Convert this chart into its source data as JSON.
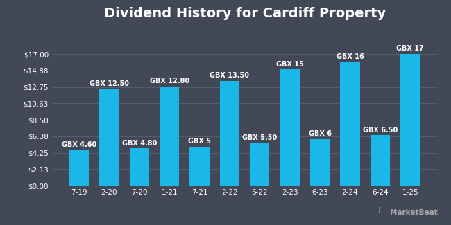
{
  "title": "Dividend History for Cardiff Property",
  "categories": [
    "7-19",
    "2-20",
    "7-20",
    "1-21",
    "7-21",
    "2-22",
    "6-22",
    "2-23",
    "6-23",
    "2-24",
    "6-24",
    "1-25"
  ],
  "values": [
    4.6,
    12.5,
    4.8,
    12.8,
    5.0,
    13.5,
    5.5,
    15.0,
    6.0,
    16.0,
    6.5,
    17.0
  ],
  "labels": [
    "GBX 4.60",
    "GBX 12.50",
    "GBX 4.80",
    "GBX 12.80",
    "GBX 5",
    "GBX 13.50",
    "GBX 5.50",
    "GBX 15",
    "GBX 6",
    "GBX 16",
    "GBX 6.50",
    "GBX 17"
  ],
  "bar_color": "#1ab8e8",
  "background_color": "#434857",
  "plot_bg_color": "#434857",
  "text_color": "#ffffff",
  "grid_color": "#555e6e",
  "yticks": [
    0.0,
    2.13,
    4.25,
    6.38,
    8.5,
    10.63,
    12.75,
    14.88,
    17.0
  ],
  "ytick_labels": [
    "$0.00",
    "$2.13",
    "$4.25",
    "$6.38",
    "$8.50",
    "$10.63",
    "$12.75",
    "$14.88",
    "$17.00"
  ],
  "ylim_max": 20.5,
  "title_fontsize": 14,
  "tick_fontsize": 7.5,
  "bar_label_fontsize": 7.0,
  "marketbeat_text": "MarketBeat",
  "marketbeat_logo": "~MarketBeat"
}
